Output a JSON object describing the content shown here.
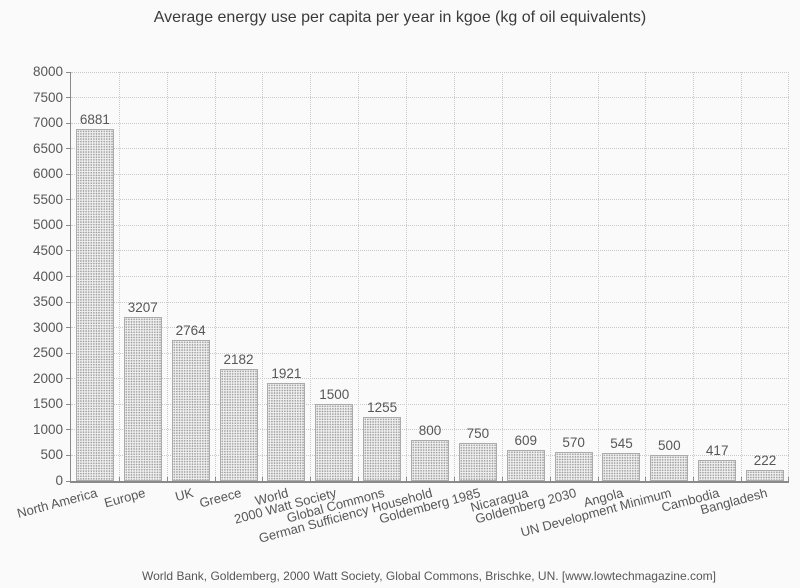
{
  "title": "Average energy use per capita per year in kgoe (kg of oil equivalents)",
  "footer": "World Bank, Goldemberg, 2000 Watt Society, Global Commons, Brischke, UN. [www.lowtechmagazine.com]",
  "chart_data": {
    "type": "bar",
    "title": "Average energy use per capita per year in kgoe (kg of oil equivalents)",
    "categories": [
      "North America",
      "Europe",
      "UK",
      "Greece",
      "World",
      "2000 Watt Society",
      "Global Commons",
      "German Sufficiency Household",
      "Goldemberg 1985",
      "Nicaragua",
      "Goldemberg 2030",
      "Angola",
      "UN Development Minimum",
      "Cambodia",
      "Bangladesh"
    ],
    "values": [
      6881,
      3207,
      2764,
      2182,
      1921,
      1500,
      1255,
      800,
      750,
      609,
      570,
      545,
      500,
      417,
      222
    ],
    "bar_value_labels": [
      "6881",
      "3207",
      "2764",
      "2182",
      "1921",
      "1500",
      "1255",
      "800",
      "750",
      "609",
      "570",
      "545",
      "500",
      "417",
      "222"
    ],
    "xlabel": "",
    "ylabel": "",
    "ylim": [
      0,
      8000
    ],
    "yticks": [
      0,
      500,
      1000,
      1500,
      2000,
      2500,
      3000,
      3500,
      4000,
      4500,
      5000,
      5500,
      6000,
      6500,
      7000,
      7500,
      8000
    ],
    "grid": "dotted horizontal and vertical gridlines",
    "legend": "none",
    "x_tick_rotation_deg": 15,
    "source_note": "World Bank, Goldemberg, 2000 Watt Society, Global Commons, Brischke, UN. [www.lowtechmagazine.com]"
  },
  "colors": {
    "background": "#fafafa",
    "title_text": "#3a3a3a",
    "label_text": "#575757",
    "axis": "#8a8a8a",
    "gridline": "#c9c9c9",
    "bar_fill_base": "#f0f0f0",
    "bar_fill_dot": "#a2a2a2",
    "bar_border": "#ababab"
  }
}
